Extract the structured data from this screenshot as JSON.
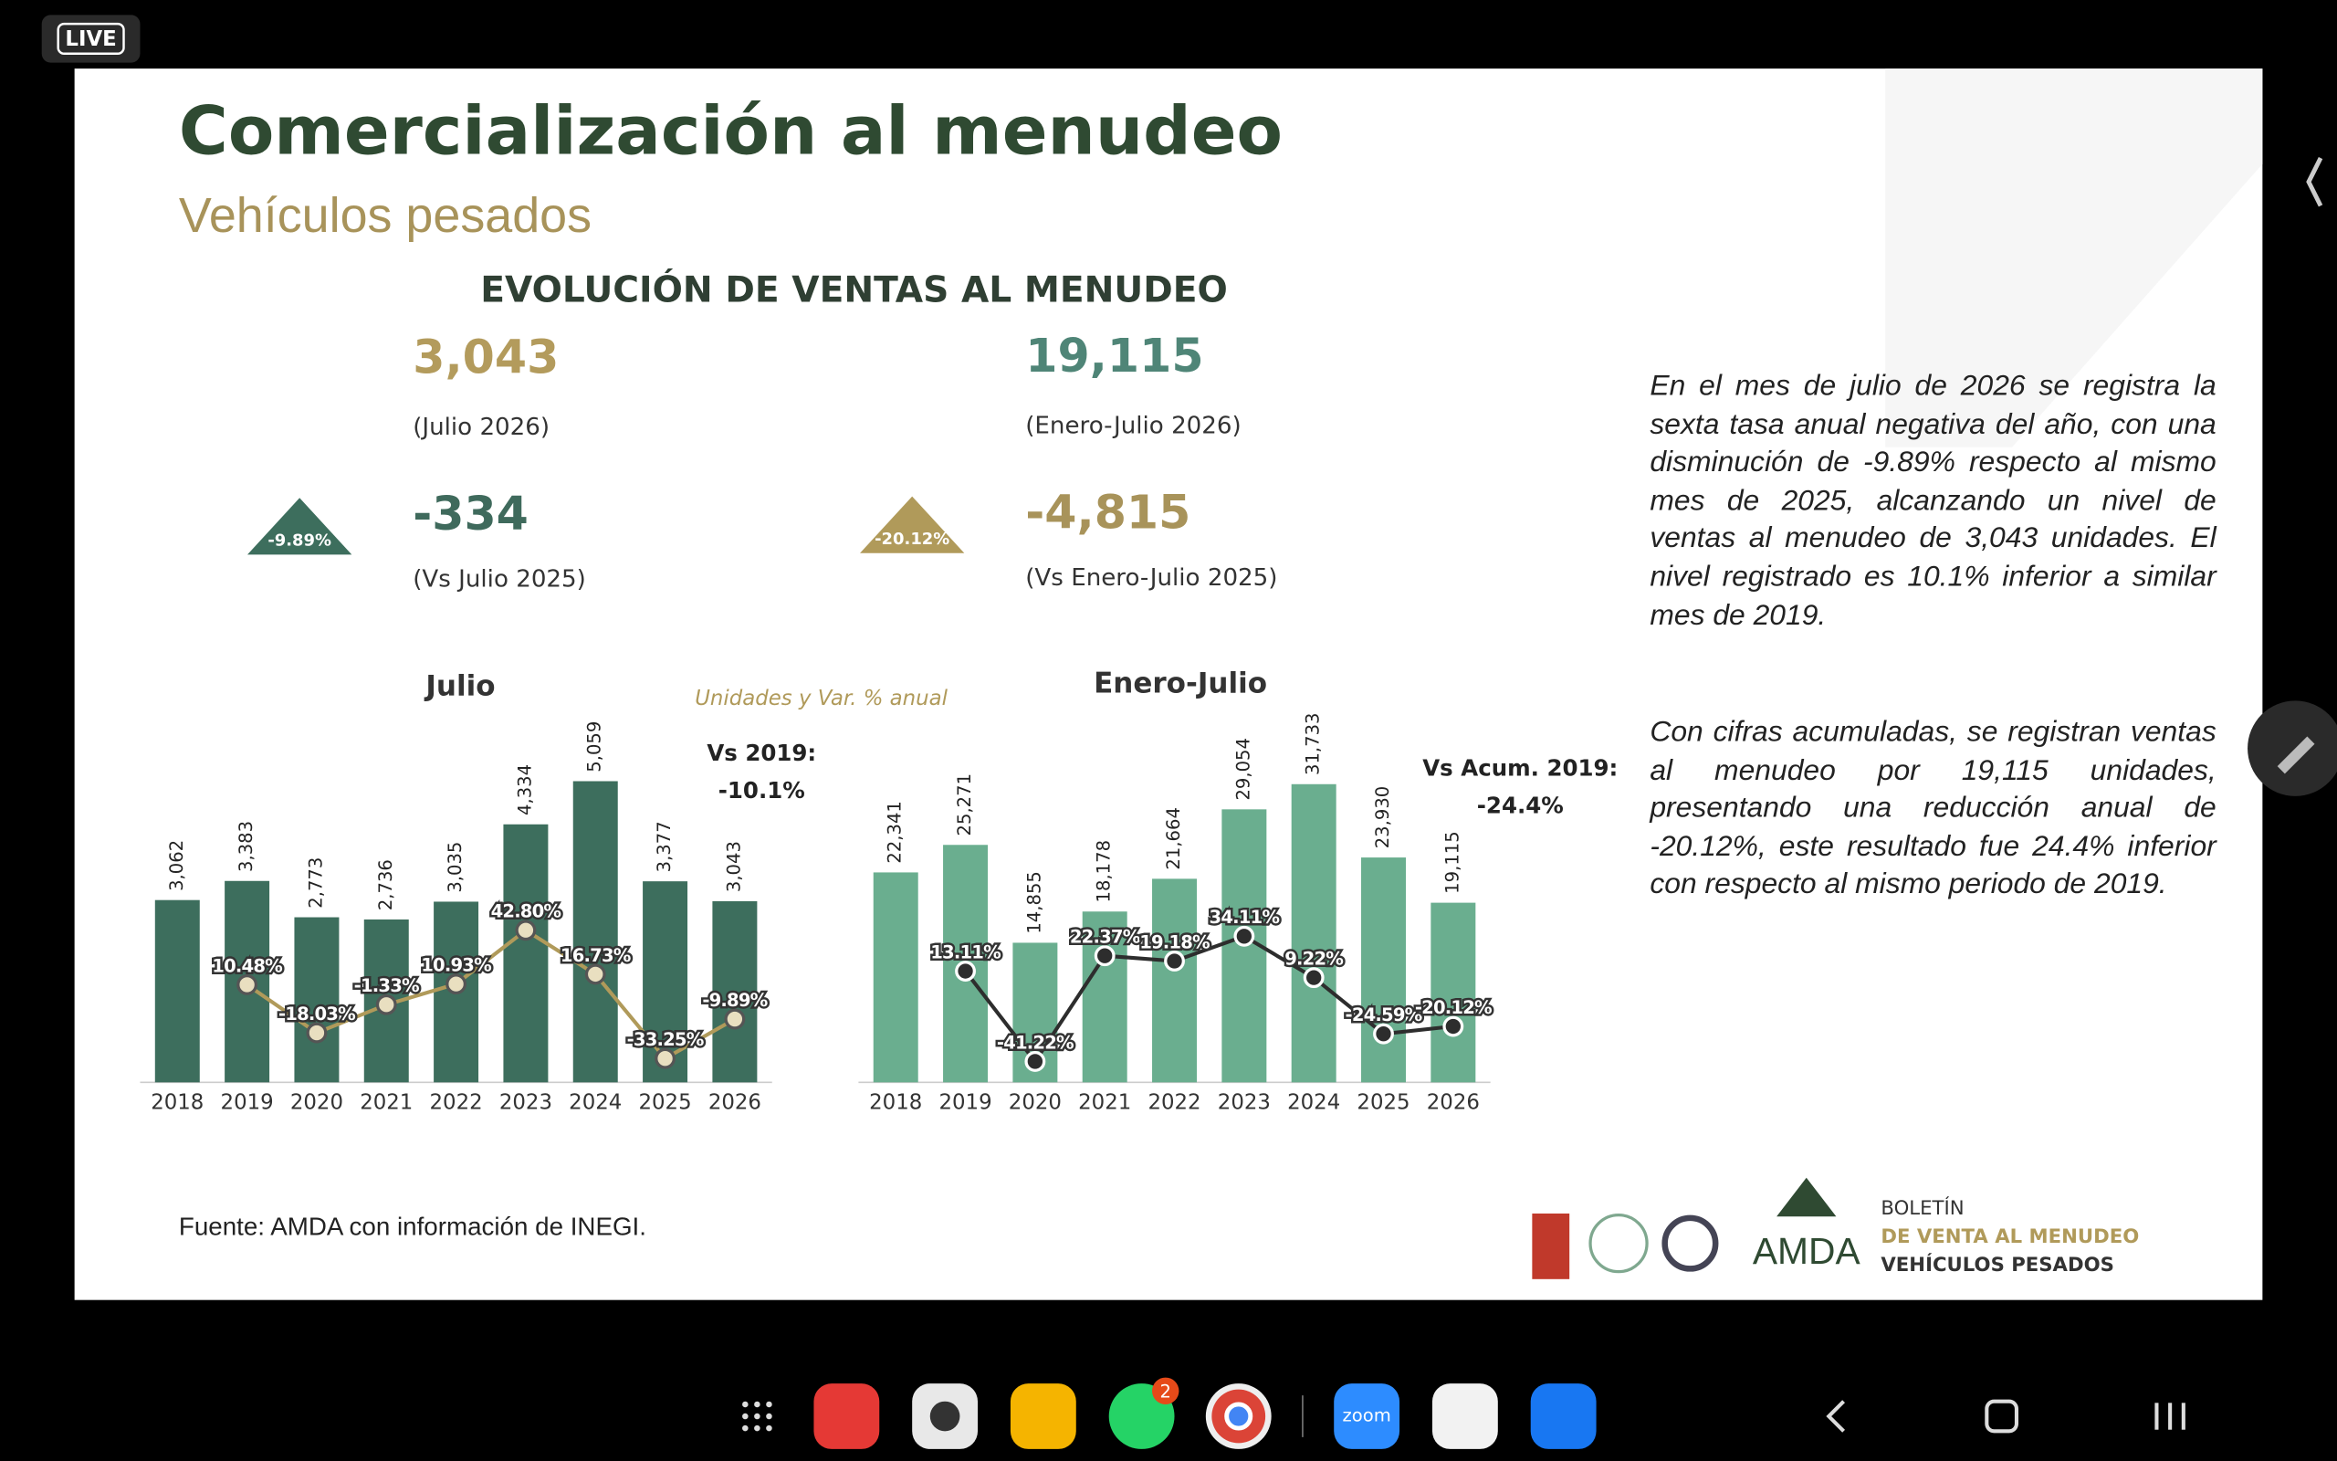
{
  "status_badge": "LIVE",
  "slide": {
    "title": "Comercialización al menudeo",
    "subtitle": "Vehículos pesados",
    "section_title": "EVOLUCIÓN DE VENTAS AL MENUDEO",
    "kpis": [
      {
        "value": "3,043",
        "label": "(Julio 2026)",
        "change": "-334",
        "change_label": "(Vs Julio 2025)",
        "badge": "-9.89%"
      },
      {
        "value": "19,115",
        "label": "(Enero-Julio 2026)",
        "change": "-4,815",
        "change_label": "(Vs Enero-Julio 2025)",
        "badge": "-20.12%"
      }
    ],
    "units_note": "Unidades y Var. % anual",
    "paragraphs": [
      "En el mes de julio de 2026 se registra la sexta tasa anual negativa del año, con una disminución de -9.89% respecto al mismo mes de 2025, alcanzando un nivel de ventas al menudeo de 3,043 unidades. El nivel registrado es 10.1% inferior a similar mes de 2019.",
      "Con cifras acumuladas, se registran ventas al menudeo por 19,115 unidades, presentando una reducción anual de -20.12%, este resultado fue 24.4% inferior con respecto al mismo periodo de 2019."
    ],
    "source": "Fuente: AMDA con información de INEGI.",
    "brand": {
      "logo": "AMDA",
      "line1": "BOLETÍN",
      "line2": "DE VENTA AL MENUDEO",
      "line3": "VEHÍCULOS PESADOS"
    }
  },
  "chart_data": [
    {
      "type": "bar",
      "title": "Julio",
      "annotation": "Vs 2019:",
      "annotation_value": "-10.1%",
      "categories": [
        "2018",
        "2019",
        "2020",
        "2021",
        "2022",
        "2023",
        "2024",
        "2025",
        "2026"
      ],
      "series": [
        {
          "type": "bar",
          "color": "#3d6e5d",
          "values": [
            3062,
            3383,
            2773,
            2736,
            3035,
            4334,
            5059,
            3377,
            3043
          ],
          "value_labels": [
            "3,062",
            "3,383",
            "2,773",
            "2,736",
            "3,035",
            "4,334",
            "5,059",
            "3,377",
            "3,043"
          ]
        },
        {
          "type": "line",
          "axis": "y2",
          "color": "#b09a5a",
          "values": [
            null,
            10.48,
            -18.03,
            -1.33,
            10.93,
            42.8,
            16.73,
            -33.25,
            -9.89
          ],
          "value_labels": [
            null,
            "10.48%",
            "-18.03%",
            "-1.33%",
            "10.93%",
            "42.80%",
            "16.73%",
            "-33.25%",
            "-9.89%"
          ]
        }
      ]
    },
    {
      "type": "bar",
      "title": "Enero-Julio",
      "annotation": "Vs Acum. 2019:",
      "annotation_value": "-24.4%",
      "categories": [
        "2018",
        "2019",
        "2020",
        "2021",
        "2022",
        "2023",
        "2024",
        "2025",
        "2026"
      ],
      "series": [
        {
          "type": "bar",
          "color": "#6aae8f",
          "values": [
            22341,
            25271,
            14855,
            18178,
            21664,
            29054,
            31733,
            23930,
            19115
          ],
          "value_labels": [
            "22,341",
            "25,271",
            "14,855",
            "18,178",
            "21,664",
            "29,054",
            "31,733",
            "23,930",
            "19,115"
          ]
        },
        {
          "type": "line",
          "axis": "y2",
          "color": "#2d2d2d",
          "values": [
            null,
            13.11,
            -41.22,
            22.37,
            19.18,
            34.11,
            9.22,
            -24.59,
            -20.12
          ],
          "value_labels": [
            null,
            "13.11%",
            "-41.22%",
            "22.37%",
            "19.18%",
            "34.11%",
            "9.22%",
            "-24.59%",
            "-20.12%"
          ]
        }
      ]
    }
  ],
  "taskbar": {
    "zoom": "zoom",
    "whatsapp_badge": "2"
  }
}
